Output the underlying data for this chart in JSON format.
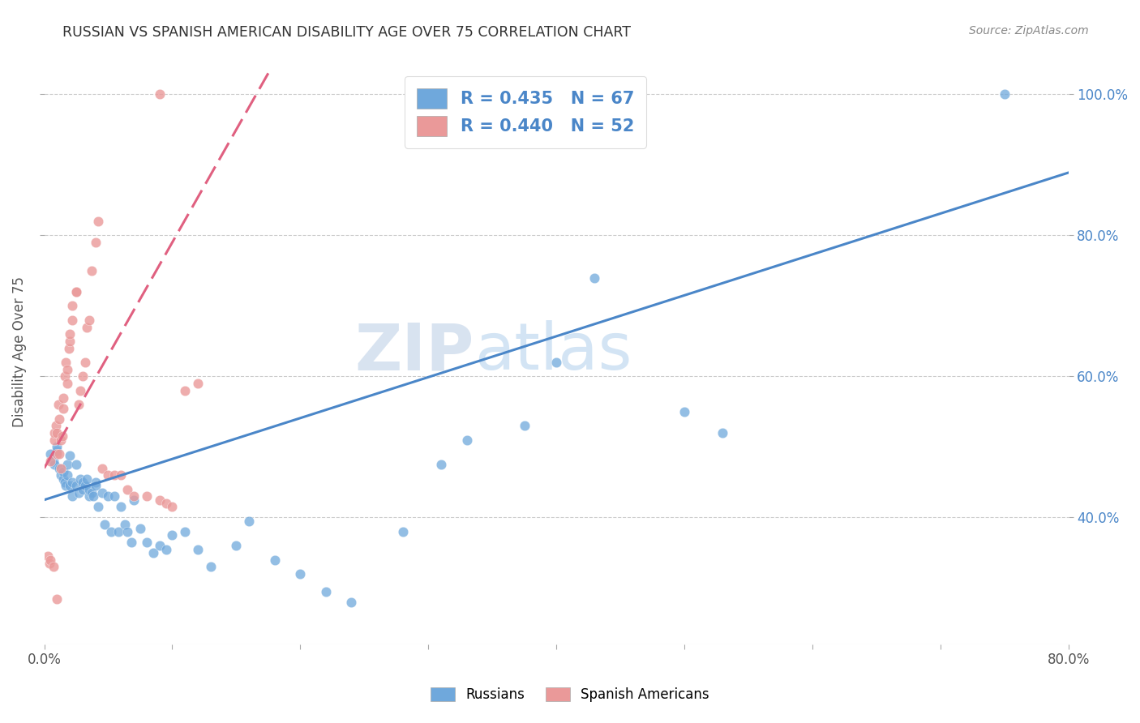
{
  "title": "RUSSIAN VS SPANISH AMERICAN DISABILITY AGE OVER 75 CORRELATION CHART",
  "source": "Source: ZipAtlas.com",
  "ylabel": "Disability Age Over 75",
  "xlim": [
    0.0,
    0.8
  ],
  "ylim": [
    0.22,
    1.05
  ],
  "ytick_vals": [
    0.4,
    0.6,
    0.8,
    1.0
  ],
  "ytick_labels": [
    "40.0%",
    "60.0%",
    "80.0%",
    "100.0%"
  ],
  "r_russian": 0.435,
  "n_russian": 67,
  "r_spanish": 0.44,
  "n_spanish": 52,
  "blue_color": "#6fa8dc",
  "pink_color": "#ea9999",
  "blue_line_color": "#4a86c8",
  "pink_line_color": "#e06080",
  "legend_text_color": "#4a86c8",
  "watermark_color": "#c8ddf0",
  "blue_intercept": 0.425,
  "blue_slope": 0.58,
  "pink_intercept": 0.47,
  "pink_slope": 3.2,
  "pink_line_xmax": 0.175,
  "russian_x": [
    0.005,
    0.007,
    0.008,
    0.01,
    0.01,
    0.012,
    0.013,
    0.015,
    0.015,
    0.016,
    0.017,
    0.018,
    0.018,
    0.02,
    0.02,
    0.022,
    0.022,
    0.025,
    0.025,
    0.027,
    0.028,
    0.03,
    0.03,
    0.032,
    0.033,
    0.035,
    0.035,
    0.037,
    0.038,
    0.04,
    0.04,
    0.042,
    0.045,
    0.047,
    0.05,
    0.052,
    0.055,
    0.058,
    0.06,
    0.063,
    0.065,
    0.068,
    0.07,
    0.075,
    0.08,
    0.085,
    0.09,
    0.095,
    0.1,
    0.11,
    0.12,
    0.13,
    0.15,
    0.16,
    0.18,
    0.2,
    0.22,
    0.24,
    0.28,
    0.31,
    0.33,
    0.375,
    0.4,
    0.43,
    0.5,
    0.53,
    0.75
  ],
  "russian_y": [
    0.49,
    0.48,
    0.475,
    0.495,
    0.5,
    0.47,
    0.46,
    0.455,
    0.465,
    0.45,
    0.445,
    0.46,
    0.475,
    0.488,
    0.445,
    0.43,
    0.45,
    0.475,
    0.445,
    0.435,
    0.455,
    0.44,
    0.45,
    0.445,
    0.455,
    0.43,
    0.44,
    0.435,
    0.43,
    0.45,
    0.445,
    0.415,
    0.435,
    0.39,
    0.43,
    0.38,
    0.43,
    0.38,
    0.415,
    0.39,
    0.38,
    0.365,
    0.425,
    0.385,
    0.365,
    0.35,
    0.36,
    0.355,
    0.375,
    0.38,
    0.355,
    0.33,
    0.36,
    0.395,
    0.34,
    0.32,
    0.295,
    0.28,
    0.38,
    0.475,
    0.51,
    0.53,
    0.62,
    0.74,
    0.55,
    0.52,
    1.0
  ],
  "spanish_x": [
    0.003,
    0.004,
    0.005,
    0.005,
    0.007,
    0.008,
    0.008,
    0.009,
    0.01,
    0.01,
    0.011,
    0.012,
    0.012,
    0.013,
    0.013,
    0.014,
    0.015,
    0.015,
    0.016,
    0.017,
    0.018,
    0.018,
    0.019,
    0.02,
    0.02,
    0.022,
    0.022,
    0.025,
    0.025,
    0.027,
    0.028,
    0.03,
    0.032,
    0.033,
    0.035,
    0.037,
    0.04,
    0.042,
    0.045,
    0.05,
    0.055,
    0.06,
    0.065,
    0.07,
    0.08,
    0.09,
    0.095,
    0.1,
    0.11,
    0.12,
    0.01,
    0.09
  ],
  "spanish_y": [
    0.345,
    0.335,
    0.48,
    0.34,
    0.33,
    0.51,
    0.52,
    0.53,
    0.49,
    0.52,
    0.56,
    0.54,
    0.49,
    0.47,
    0.51,
    0.515,
    0.555,
    0.57,
    0.6,
    0.62,
    0.59,
    0.61,
    0.64,
    0.65,
    0.66,
    0.68,
    0.7,
    0.72,
    0.72,
    0.56,
    0.58,
    0.6,
    0.62,
    0.67,
    0.68,
    0.75,
    0.79,
    0.82,
    0.47,
    0.46,
    0.46,
    0.46,
    0.44,
    0.43,
    0.43,
    0.425,
    0.42,
    0.415,
    0.58,
    0.59,
    0.285,
    1.0
  ]
}
